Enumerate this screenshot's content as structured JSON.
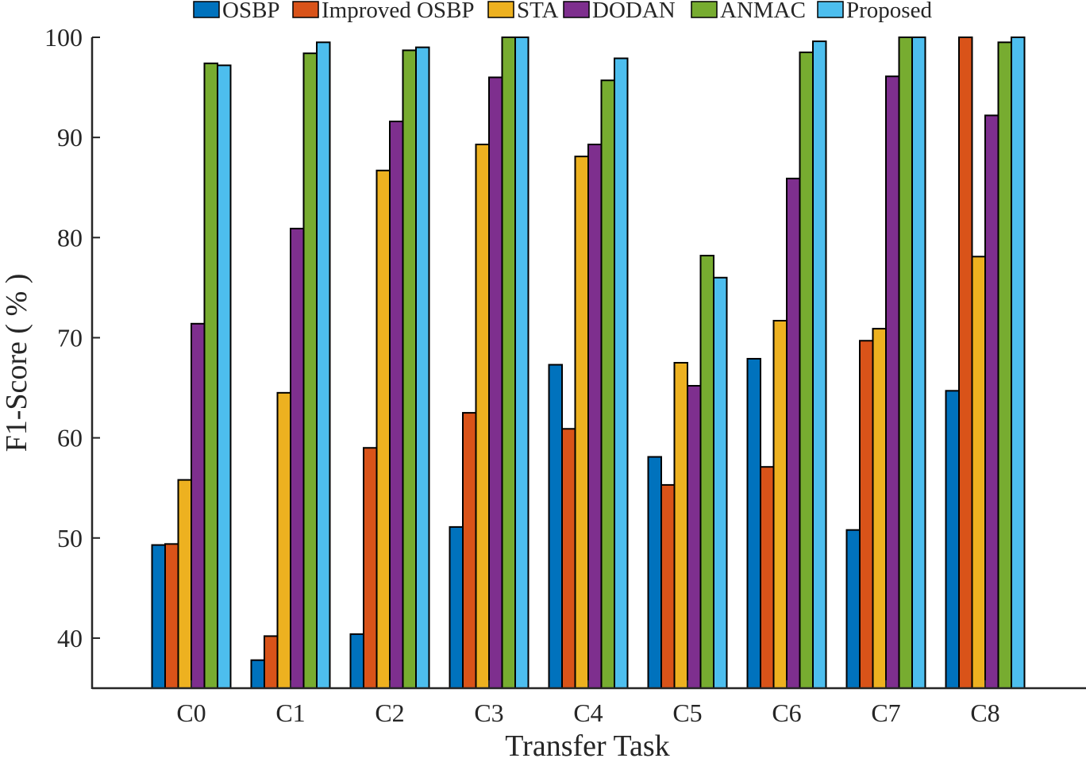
{
  "chart_data": {
    "type": "bar",
    "title": "",
    "xlabel": "Transfer Task",
    "ylabel": "F1-Score ( % )",
    "ylim": [
      35,
      100
    ],
    "yticks": [
      40,
      50,
      60,
      70,
      80,
      90,
      100
    ],
    "grid": false,
    "legend_position": "top",
    "categories": [
      "C0",
      "C1",
      "C2",
      "C3",
      "C4",
      "C5",
      "C6",
      "C7",
      "C8"
    ],
    "series": [
      {
        "name": "OSBP",
        "color": "#0072BD",
        "values": [
          49.3,
          37.8,
          40.4,
          51.1,
          67.3,
          58.1,
          67.9,
          50.8,
          64.7
        ]
      },
      {
        "name": "Improved OSBP",
        "color": "#D95319",
        "values": [
          49.4,
          40.2,
          59.0,
          62.5,
          60.9,
          55.3,
          57.1,
          69.7,
          100.0
        ]
      },
      {
        "name": "STA",
        "color": "#EDB120",
        "values": [
          55.8,
          64.5,
          86.7,
          89.3,
          88.1,
          67.5,
          71.7,
          70.9,
          78.1
        ]
      },
      {
        "name": "DODAN",
        "color": "#7E2F8E",
        "values": [
          71.4,
          80.9,
          91.6,
          96.0,
          89.3,
          65.2,
          85.9,
          96.1,
          92.2
        ]
      },
      {
        "name": "ANMAC",
        "color": "#77AC30",
        "values": [
          97.4,
          98.4,
          98.7,
          100.0,
          95.7,
          78.2,
          98.5,
          100.0,
          99.5
        ]
      },
      {
        "name": "Proposed",
        "color": "#4DBEEE",
        "values": [
          97.2,
          99.5,
          99.0,
          100.0,
          97.9,
          76.0,
          99.6,
          100.0,
          100.0
        ]
      }
    ]
  }
}
